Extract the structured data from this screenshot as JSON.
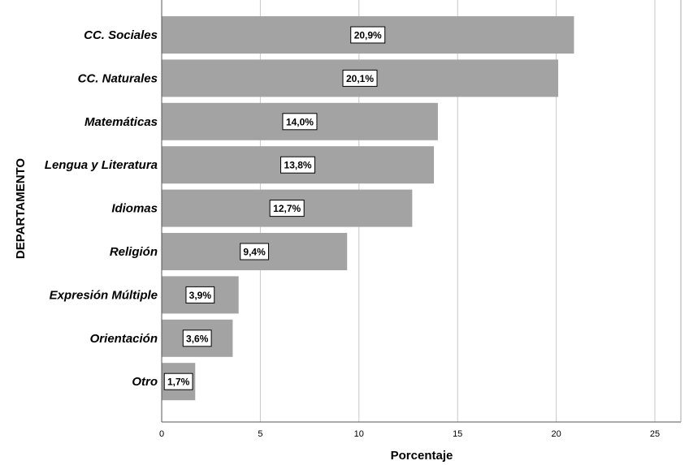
{
  "chart_data": {
    "type": "bar",
    "orientation": "horizontal",
    "categories": [
      "CC. Sociales",
      "CC. Naturales",
      "Matemáticas",
      "Lengua y Literatura",
      "Idiomas",
      "Religión",
      "Expresión Múltiple",
      "Orientación",
      "Otro"
    ],
    "values": [
      20.9,
      20.1,
      14.0,
      13.8,
      12.7,
      9.4,
      3.9,
      3.6,
      1.7
    ],
    "data_labels": [
      "20,9%",
      "20,1%",
      "14,0%",
      "13,8%",
      "12,7%",
      "9,4%",
      "3,9%",
      "3,6%",
      "1,7%"
    ],
    "xlabel": "Porcentaje",
    "ylabel": "DEPARTAMENTO",
    "xlim": [
      0,
      26.3
    ],
    "xticks": [
      "0",
      "5",
      "10",
      "15",
      "20",
      "25"
    ],
    "xtick_values": [
      0,
      5,
      10,
      15,
      20,
      25
    ],
    "grid": "vertical",
    "bar_color": "#a3a3a3",
    "grid_color": "#c8c8c8"
  }
}
